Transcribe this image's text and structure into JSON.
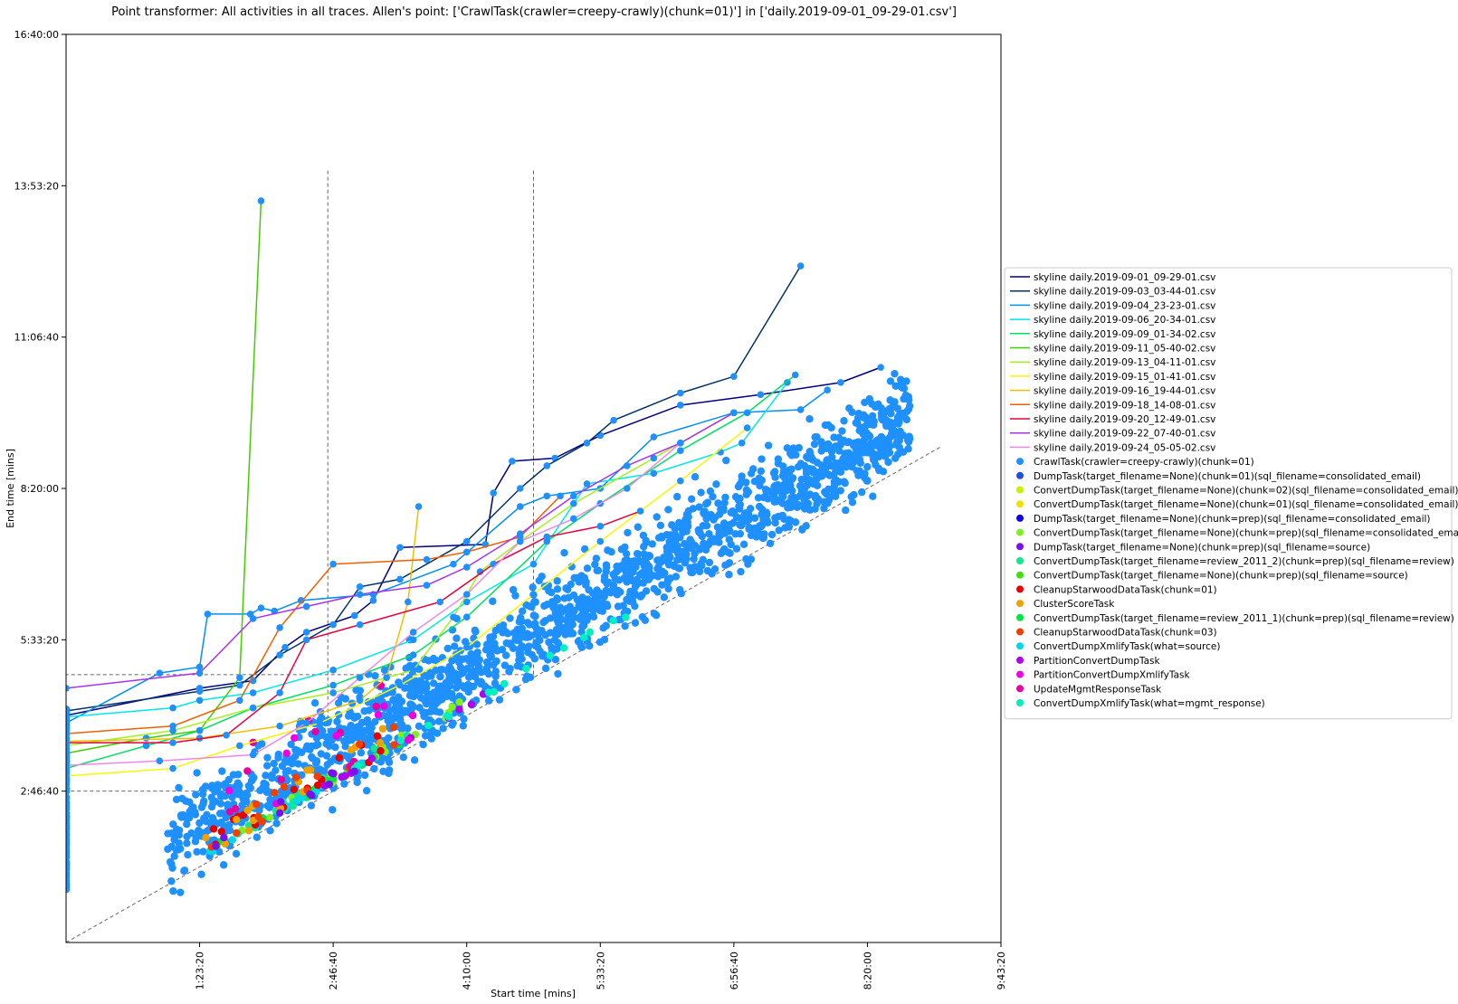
{
  "chart_data": {
    "type": "scatter",
    "title": "Point transformer: All activities in all traces. Allen's point: ['CrawlTask(crawler=creepy-crawly)(chunk=01)'] in ['daily.2019-09-01_09-29-01.csv']",
    "xlabel": "Start time [mins]",
    "ylabel": "End time [mins]",
    "xlim": [
      0,
      35000
    ],
    "ylim": [
      0,
      60000
    ],
    "x_ticks": [
      {
        "value": 5000,
        "label": "1:23:20"
      },
      {
        "value": 10000,
        "label": "2:46:40"
      },
      {
        "value": 15000,
        "label": "4:10:00"
      },
      {
        "value": 20000,
        "label": "5:33:20"
      },
      {
        "value": 25000,
        "label": "6:56:40"
      },
      {
        "value": 30000,
        "label": "8:20:00"
      },
      {
        "value": 35000,
        "label": "9:43:20"
      }
    ],
    "y_ticks": [
      {
        "value": 10000,
        "label": "2:46:40"
      },
      {
        "value": 20000,
        "label": "5:33:20"
      },
      {
        "value": 30000,
        "label": "8:20:00"
      },
      {
        "value": 40000,
        "label": "11:06:40"
      },
      {
        "value": 50000,
        "label": "13:53:20"
      },
      {
        "value": 60000,
        "label": "16:40:00"
      }
    ],
    "grid": false,
    "legend_position": "right",
    "reference_lines": [
      {
        "style": "dashed",
        "points": [
          [
            0,
            0
          ],
          [
            32800,
            32800
          ]
        ]
      },
      {
        "style": "dashed",
        "points": [
          [
            9800,
            51000
          ],
          [
            9800,
            10000
          ],
          [
            0,
            10000
          ]
        ]
      },
      {
        "style": "dashed",
        "points": [
          [
            17500,
            51000
          ],
          [
            17500,
            17700
          ],
          [
            0,
            17700
          ]
        ]
      }
    ],
    "skylines": [
      {
        "name": "skyline daily.2019-09-01_09-29-01.csv",
        "color": "#000080",
        "points": [
          [
            0,
            15000
          ],
          [
            5000,
            16800
          ],
          [
            7000,
            17300
          ],
          [
            8200,
            19500
          ],
          [
            9000,
            20500
          ],
          [
            10800,
            21600
          ],
          [
            11500,
            22600
          ],
          [
            12500,
            26100
          ],
          [
            15700,
            26300
          ],
          [
            16000,
            29700
          ],
          [
            16700,
            31800
          ],
          [
            18300,
            32000
          ],
          [
            20000,
            33500
          ],
          [
            23000,
            35500
          ],
          [
            26000,
            36200
          ],
          [
            29000,
            37000
          ],
          [
            30500,
            38000
          ]
        ]
      },
      {
        "name": "skyline daily.2019-09-03_03-44-01.csv",
        "color": "#003366",
        "points": [
          [
            0,
            15300
          ],
          [
            5000,
            16600
          ],
          [
            6500,
            17000
          ],
          [
            8000,
            19000
          ],
          [
            10000,
            21000
          ],
          [
            11000,
            23500
          ],
          [
            12500,
            24000
          ],
          [
            15000,
            26500
          ],
          [
            17000,
            30000
          ],
          [
            18000,
            31500
          ],
          [
            19500,
            33000
          ],
          [
            20500,
            34500
          ],
          [
            23000,
            36300
          ],
          [
            25000,
            37400
          ],
          [
            27500,
            44700
          ]
        ]
      },
      {
        "name": "skyline daily.2019-09-04_23-23-01.csv",
        "color": "#0090f0",
        "points": [
          [
            0,
            14500
          ],
          [
            3500,
            17800
          ],
          [
            5000,
            18200
          ],
          [
            5300,
            21700
          ],
          [
            6900,
            21700
          ],
          [
            7300,
            22100
          ],
          [
            7800,
            21900
          ],
          [
            8800,
            22600
          ],
          [
            11500,
            23000
          ],
          [
            14500,
            25000
          ],
          [
            17000,
            28800
          ],
          [
            18000,
            29500
          ],
          [
            20000,
            30000
          ],
          [
            22000,
            33400
          ],
          [
            25000,
            35000
          ],
          [
            27500,
            35200
          ],
          [
            28500,
            36500
          ]
        ]
      },
      {
        "name": "skyline daily.2019-09-06_20-34-01.csv",
        "color": "#00e8e8",
        "points": [
          [
            0,
            14900
          ],
          [
            4000,
            15500
          ],
          [
            5000,
            16000
          ],
          [
            7000,
            16500
          ],
          [
            10000,
            18000
          ],
          [
            13000,
            20000
          ],
          [
            15000,
            22500
          ],
          [
            17500,
            25000
          ],
          [
            19500,
            30300
          ],
          [
            22000,
            31000
          ],
          [
            24500,
            32400
          ],
          [
            25300,
            33000
          ],
          [
            27000,
            37000
          ]
        ]
      },
      {
        "name": "skyline daily.2019-09-09_01-34-02.csv",
        "color": "#00e060",
        "points": [
          [
            0,
            11500
          ],
          [
            3000,
            13000
          ],
          [
            5000,
            14000
          ],
          [
            7000,
            15500
          ],
          [
            10000,
            17000
          ],
          [
            13000,
            19000
          ],
          [
            15000,
            21500
          ],
          [
            18000,
            26500
          ],
          [
            20000,
            29000
          ],
          [
            23000,
            32500
          ],
          [
            25500,
            35000
          ],
          [
            27300,
            37500
          ]
        ]
      },
      {
        "name": "skyline daily.2019-09-11_05-40-02.csv",
        "color": "#44cc00",
        "points": [
          [
            0,
            12500
          ],
          [
            3000,
            13500
          ],
          [
            5000,
            14000
          ],
          [
            6500,
            17500
          ],
          [
            7300,
            49000
          ]
        ]
      },
      {
        "name": "skyline daily.2019-09-13_04-11-01.csv",
        "color": "#a6f020",
        "points": [
          [
            0,
            13000
          ],
          [
            4000,
            14000
          ],
          [
            7000,
            15500
          ],
          [
            10000,
            16500
          ],
          [
            13000,
            18000
          ],
          [
            14500,
            21500
          ],
          [
            15500,
            24500
          ],
          [
            17000,
            26500
          ],
          [
            19000,
            29000
          ],
          [
            22000,
            32000
          ],
          [
            25000,
            35000
          ]
        ]
      },
      {
        "name": "skyline daily.2019-09-15_01-41-01.csv",
        "color": "#f8f800",
        "points": [
          [
            0,
            11000
          ],
          [
            4000,
            11500
          ],
          [
            6500,
            13000
          ],
          [
            9500,
            14500
          ],
          [
            12500,
            17000
          ],
          [
            15000,
            19500
          ],
          [
            17500,
            23000
          ],
          [
            20000,
            26500
          ],
          [
            23000,
            30500
          ],
          [
            25500,
            34000
          ]
        ]
      },
      {
        "name": "skyline daily.2019-09-16_19-44-01.csv",
        "color": "#f0c000",
        "points": [
          [
            0,
            13300
          ],
          [
            5000,
            13500
          ],
          [
            8000,
            14300
          ],
          [
            11000,
            16000
          ],
          [
            12000,
            17500
          ],
          [
            12800,
            22500
          ],
          [
            13200,
            28800
          ]
        ]
      },
      {
        "name": "skyline daily.2019-09-18_14-08-01.csv",
        "color": "#f06000",
        "points": [
          [
            0,
            13800
          ],
          [
            4000,
            14300
          ],
          [
            6500,
            16000
          ],
          [
            8000,
            20800
          ],
          [
            10000,
            25000
          ],
          [
            13500,
            25300
          ],
          [
            15000,
            25800
          ],
          [
            17000,
            26800
          ],
          [
            18500,
            29500
          ]
        ]
      },
      {
        "name": "skyline daily.2019-09-20_12-49-01.csv",
        "color": "#e8003c",
        "points": [
          [
            0,
            13200
          ],
          [
            4000,
            13200
          ],
          [
            6000,
            13700
          ],
          [
            8000,
            16500
          ],
          [
            9000,
            20000
          ],
          [
            11000,
            21000
          ],
          [
            14000,
            22500
          ],
          [
            16000,
            25000
          ],
          [
            18000,
            26800
          ],
          [
            20000,
            27500
          ],
          [
            21500,
            28500
          ]
        ]
      },
      {
        "name": "skyline daily.2019-09-22_07-40-01.csv",
        "color": "#aa33ee",
        "points": [
          [
            0,
            16800
          ],
          [
            5000,
            17800
          ],
          [
            7000,
            21400
          ],
          [
            9000,
            22200
          ],
          [
            11000,
            23000
          ],
          [
            13500,
            23600
          ],
          [
            15000,
            24800
          ],
          [
            17000,
            27000
          ],
          [
            19000,
            29500
          ],
          [
            21000,
            31500
          ],
          [
            23000,
            33000
          ],
          [
            25000,
            35000
          ]
        ]
      },
      {
        "name": "skyline daily.2019-09-24_05-05-02.csv",
        "color": "#ee88ee",
        "points": [
          [
            0,
            11700
          ],
          [
            3500,
            12000
          ],
          [
            7000,
            12400
          ],
          [
            9000,
            14500
          ],
          [
            11000,
            17500
          ],
          [
            13000,
            20500
          ],
          [
            15000,
            23000
          ],
          [
            17000,
            26500
          ],
          [
            19000,
            28000
          ],
          [
            21000,
            30000
          ],
          [
            23000,
            33000
          ]
        ]
      }
    ],
    "series": [
      {
        "name": "CrawlTask(crawler=creepy-crawly)(chunk=01)",
        "color": "#1e90ff"
      },
      {
        "name": "DumpTask(target_filename=None)(chunk=01)(sql_filename=consolidated_email)",
        "color": "#1f4fe0"
      },
      {
        "name": "ConvertDumpTask(target_filename=None)(chunk=02)(sql_filename=consolidated_email)",
        "color": "#c8f000"
      },
      {
        "name": "ConvertDumpTask(target_filename=None)(chunk=01)(sql_filename=consolidated_email)",
        "color": "#f0e000"
      },
      {
        "name": "DumpTask(target_filename=None)(chunk=prep)(sql_filename=consolidated_email)",
        "color": "#1000f0"
      },
      {
        "name": "ConvertDumpTask(target_filename=None)(chunk=prep)(sql_filename=consolidated_email)",
        "color": "#7ef020"
      },
      {
        "name": "DumpTask(target_filename=None)(chunk=prep)(sql_filename=source)",
        "color": "#7a10f0"
      },
      {
        "name": "ConvertDumpTask(target_filename=review_2011_2)(chunk=prep)(sql_filename=review)",
        "color": "#10e890"
      },
      {
        "name": "ConvertDumpTask(target_filename=None)(chunk=prep)(sql_filename=source)",
        "color": "#40e010"
      },
      {
        "name": "CleanupStarwoodDataTask(chunk=01)",
        "color": "#e80000"
      },
      {
        "name": "ClusterScoreTask",
        "color": "#f0a000"
      },
      {
        "name": "ConvertDumpTask(target_filename=review_2011_1)(chunk=prep)(sql_filename=review)",
        "color": "#00e840"
      },
      {
        "name": "CleanupStarwoodDataTask(chunk=03)",
        "color": "#f04000"
      },
      {
        "name": "ConvertDumpXmlifyTask(what=source)",
        "color": "#00d8e8"
      },
      {
        "name": "PartitionConvertDumpTask",
        "color": "#b000f0"
      },
      {
        "name": "PartitionConvertDumpXmlifyTask",
        "color": "#f000e0"
      },
      {
        "name": "UpdateMgmtResponseTask",
        "color": "#e800a0"
      },
      {
        "name": "ConvertDumpXmlifyTask(what=mgmt_response)",
        "color": "#00f0c0"
      }
    ]
  }
}
